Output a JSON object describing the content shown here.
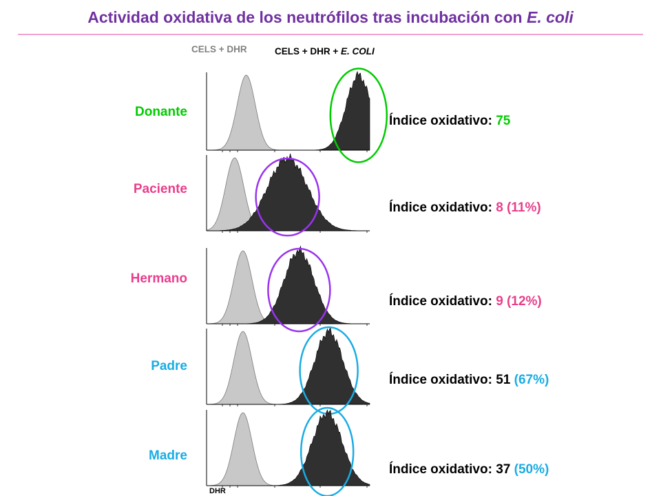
{
  "title_main": "Actividad oxidativa de los neutrófilos tras incubación con ",
  "title_italic": "E. coli",
  "header_control": "CELS + DHR",
  "header_stim_prefix": "CELS + DHR + ",
  "header_stim_italic": "E. COLI",
  "axis_label": "DHR",
  "index_prefix": "Índice oxidativo: ",
  "colors": {
    "title": "#7030A0",
    "rule": "#F0A0D0",
    "control_histogram": "#C8C8C8",
    "stimulated_histogram": "#303030",
    "green": "#00CC00",
    "purple": "#9933EE",
    "pink": "#E83E8C",
    "blue": "#1AACE3"
  },
  "chart_data": [
    {
      "type": "area",
      "label": "Donante",
      "label_color": "#00CC00",
      "index_value": "75",
      "index_pct": "",
      "value_color": "#00CC00",
      "circle_color": "#00CC00",
      "control_peak": 0.24,
      "stim_peak": 0.92,
      "stim_width": 0.075
    },
    {
      "type": "area",
      "label": "Paciente",
      "label_color": "#E83E8C",
      "index_value": "8",
      "index_pct": "(11%)",
      "value_color": "#E83E8C",
      "circle_color": "#9933EE",
      "control_peak": 0.17,
      "stim_peak": 0.49,
      "stim_width": 0.12
    },
    {
      "type": "area",
      "label": "Hermano",
      "label_color": "#E83E8C",
      "index_value": "9",
      "index_pct": "(12%)",
      "value_color": "#E83E8C",
      "circle_color": "#9933EE",
      "control_peak": 0.22,
      "stim_peak": 0.56,
      "stim_width": 0.09
    },
    {
      "type": "area",
      "label": "Padre",
      "label_color": "#1AACE3",
      "index_value": "51",
      "index_pct": "(67%)",
      "value_color": "#000000",
      "circle_color": "#1AACE3",
      "control_peak": 0.22,
      "stim_peak": 0.74,
      "stim_width": 0.085
    },
    {
      "type": "area",
      "label": "Madre",
      "label_color": "#1AACE3",
      "index_value": "37",
      "index_pct": "(50%)",
      "value_color": "#000000",
      "circle_color": "#1AACE3",
      "control_peak": 0.22,
      "stim_peak": 0.73,
      "stim_width": 0.09
    }
  ]
}
